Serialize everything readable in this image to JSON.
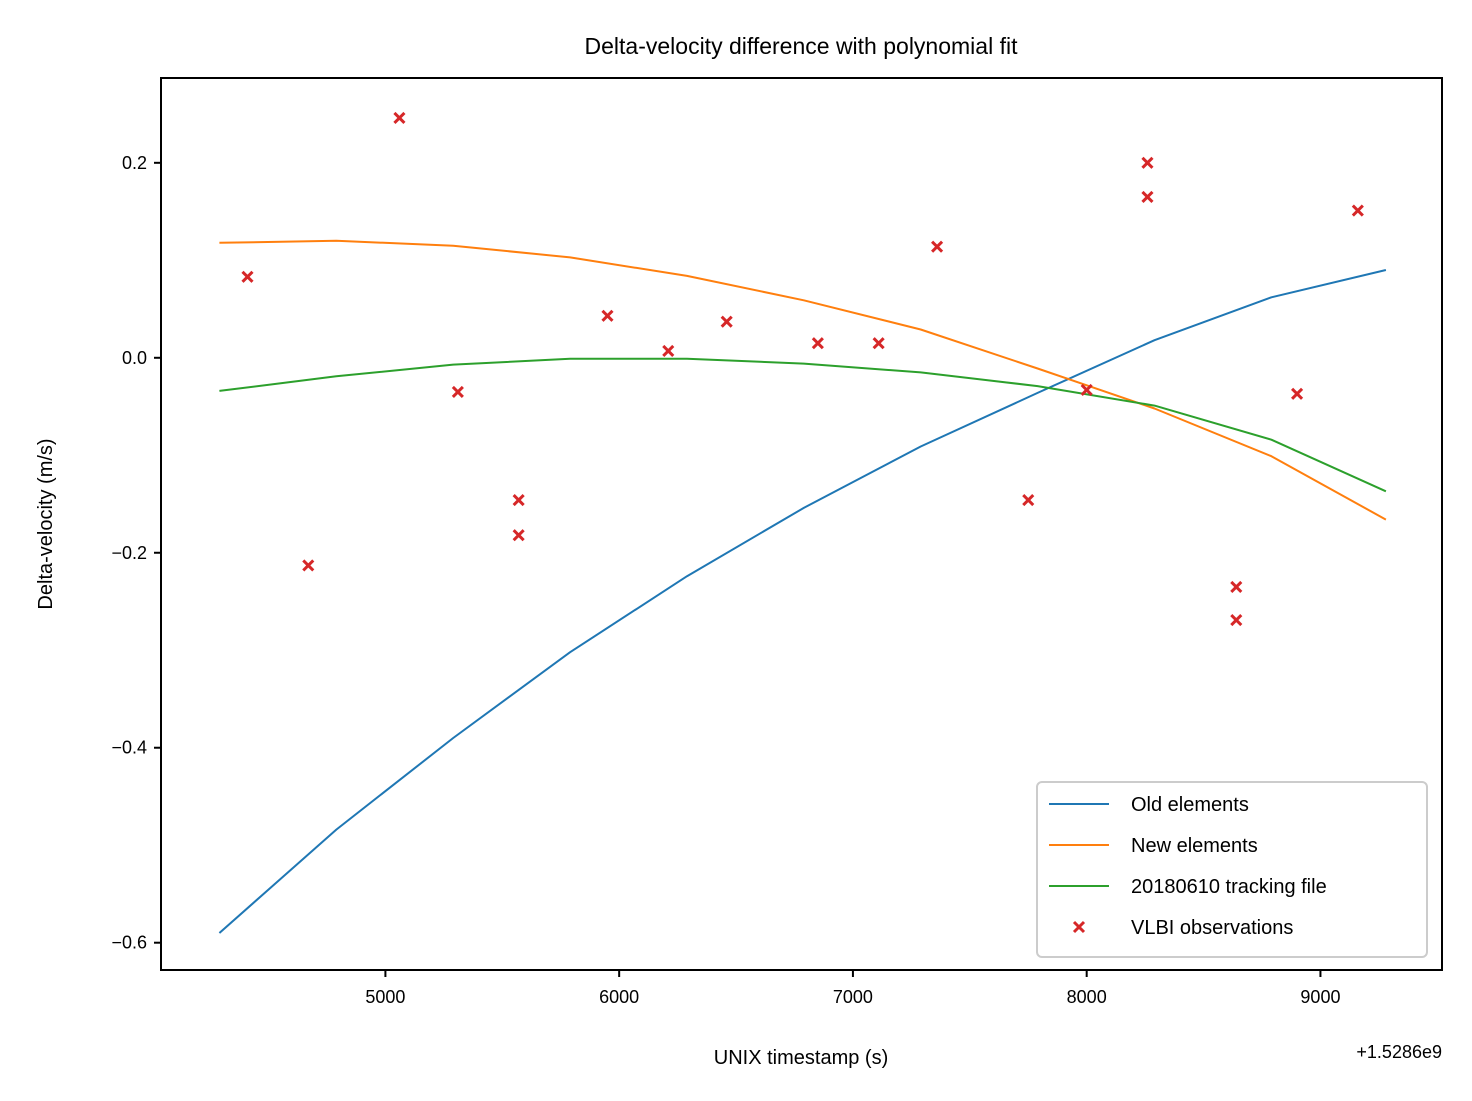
{
  "chart_data": {
    "type": "line",
    "title": "Delta-velocity difference with polynomial fit",
    "xlabel": "UNIX timestamp (s)",
    "ylabel": "Delta-velocity (m/s)",
    "x_offset_label": "+1.5286e9",
    "xlim": [
      4040,
      9520
    ],
    "ylim": [
      -0.628,
      0.287
    ],
    "xticks": [
      5000,
      6000,
      7000,
      8000,
      9000
    ],
    "xtick_labels": [
      "5000",
      "6000",
      "7000",
      "8000",
      "9000"
    ],
    "yticks": [
      -0.6,
      -0.4,
      -0.2,
      0.0,
      0.2
    ],
    "ytick_labels": [
      "−0.6",
      "−0.4",
      "−0.2",
      "0.0",
      "0.2"
    ],
    "grid": false,
    "legend_position": "lower-right",
    "series": [
      {
        "name": "Old elements",
        "kind": "line",
        "color": "#1f77b4",
        "x": [
          4290,
          4790,
          5290,
          5790,
          6290,
          6790,
          7290,
          7790,
          8290,
          8790,
          9280
        ],
        "y": [
          -0.59,
          -0.484,
          -0.39,
          -0.302,
          -0.224,
          -0.154,
          -0.091,
          -0.036,
          0.018,
          0.062,
          0.09
        ]
      },
      {
        "name": "New elements",
        "kind": "line",
        "color": "#ff7f0e",
        "x": [
          4290,
          4790,
          5290,
          5790,
          6290,
          6790,
          7290,
          7790,
          8290,
          8790,
          9280
        ],
        "y": [
          0.118,
          0.12,
          0.115,
          0.103,
          0.084,
          0.059,
          0.029,
          -0.011,
          -0.052,
          -0.101,
          -0.166
        ]
      },
      {
        "name": "20180610 tracking file",
        "kind": "line",
        "color": "#2ca02c",
        "x": [
          4290,
          4790,
          5290,
          5790,
          6290,
          6790,
          7290,
          7790,
          8290,
          8790,
          9280
        ],
        "y": [
          -0.034,
          -0.019,
          -0.007,
          -0.001,
          -0.001,
          -0.006,
          -0.015,
          -0.029,
          -0.049,
          -0.084,
          -0.137
        ]
      },
      {
        "name": "VLBI observations",
        "kind": "scatter",
        "marker": "x",
        "color": "#d62728",
        "x": [
          4410,
          4670,
          5060,
          5310,
          5570,
          5570,
          5950,
          6210,
          6460,
          6850,
          7110,
          7360,
          7750,
          8000,
          8260,
          8260,
          8640,
          8640,
          8900,
          9160
        ],
        "y": [
          0.083,
          -0.213,
          0.246,
          -0.035,
          -0.146,
          -0.182,
          0.043,
          0.007,
          0.037,
          0.015,
          0.015,
          0.114,
          -0.146,
          -0.033,
          0.2,
          0.165,
          -0.235,
          -0.269,
          -0.037,
          0.151
        ]
      }
    ]
  }
}
